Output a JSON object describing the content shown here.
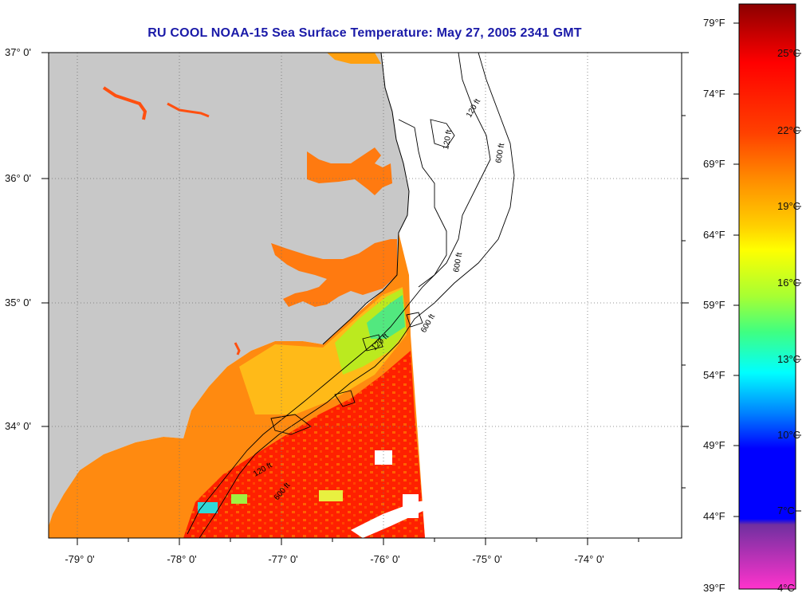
{
  "title": "RU COOL  NOAA-15  Sea Surface Temperature:  May 27, 2005 2341 GMT",
  "latitude_labels": [
    "37° 0'",
    "36° 0'",
    "35° 0'",
    "34° 0'"
  ],
  "longitude_labels": [
    "-79° 0'",
    "-78° 0'",
    "-77° 0'",
    "-76° 0'",
    "-75° 0'",
    "-74° 0'"
  ],
  "isobath_labels": [
    "120 ft",
    "600 ft",
    "120 ft",
    "600 ft",
    "120 ft",
    "600 ft",
    "120 ft",
    "600 ft"
  ],
  "colorbar": {
    "fahrenheit_labels": [
      "79°F",
      "74°F",
      "69°F",
      "64°F",
      "59°F",
      "54°F",
      "49°F",
      "44°F",
      "39°F"
    ],
    "celsius_labels": [
      "25°C",
      "22°C",
      "19°C",
      "16°C",
      "13°C",
      "10°C",
      "7°C",
      "4°C"
    ],
    "colors": {
      "top": "#8b0000",
      "red": "#ff0000",
      "orange": "#ff8c00",
      "yellow": "#ffff00",
      "green": "#4cff4c",
      "cyan": "#00ffff",
      "blue": "#0000ff",
      "purple": "#8a2be2",
      "magenta": "#ff33cc"
    }
  },
  "colors": {
    "land": "#c8c8c8",
    "title": "#1a1aa8"
  }
}
